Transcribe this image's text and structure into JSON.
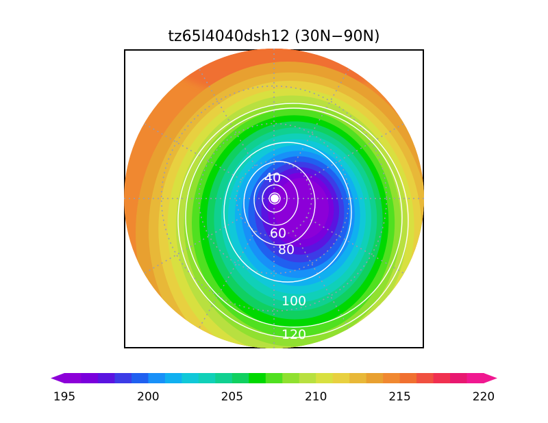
{
  "chart_data": {
    "type": "heatmap",
    "projection": "north-polar-stereographic",
    "title": "tz65l4040dsh12 (30N−90N)",
    "region": "30N-90N",
    "colorbar": {
      "min": 195,
      "max": 220,
      "step": 1.25,
      "extend": "both",
      "tick_labels": [
        "195",
        "200",
        "205",
        "210",
        "215",
        "220"
      ],
      "tick_values": [
        195,
        200,
        205,
        210,
        215,
        220
      ],
      "colors": [
        "#8c00d8",
        "#7a00dc",
        "#5a14e0",
        "#3c3ce6",
        "#2060f0",
        "#1890f8",
        "#10b0f0",
        "#10c8d8",
        "#10d0b8",
        "#10d090",
        "#10d060",
        "#00d800",
        "#50e020",
        "#90e030",
        "#b8e040",
        "#d8e040",
        "#e8d040",
        "#e8b838",
        "#e8a030",
        "#f08830",
        "#f07030",
        "#f05040",
        "#f03050",
        "#e81870",
        "#f01890"
      ]
    },
    "contours": {
      "color": "#ffffff",
      "labels": [
        "40",
        "60",
        "80",
        "100",
        "120"
      ],
      "levels": [
        20,
        40,
        60,
        80,
        100,
        120
      ]
    },
    "field_description_values": {
      "polar_minimum": 195,
      "outer_maximum": 215
    },
    "grid": true
  }
}
